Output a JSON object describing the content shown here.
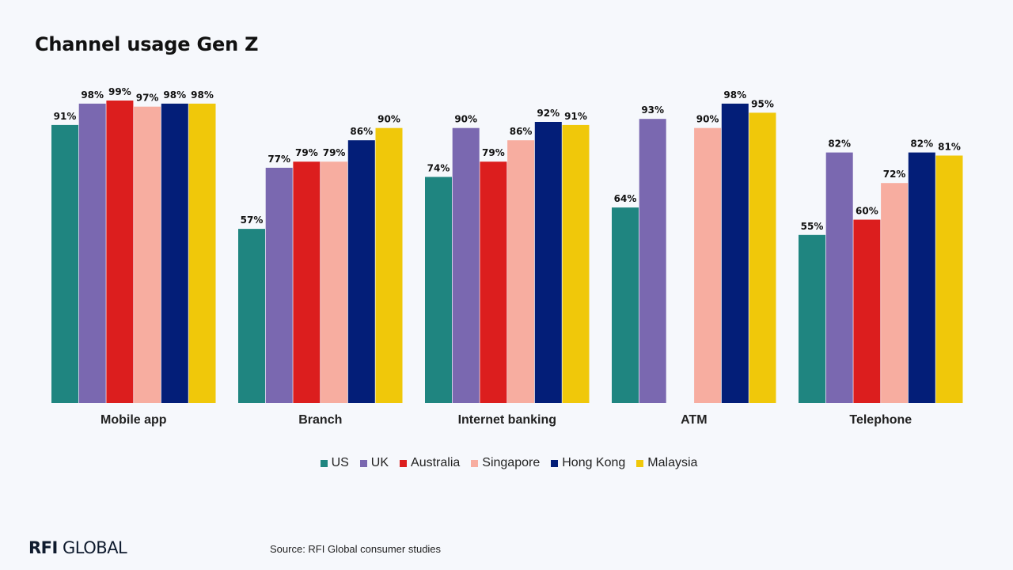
{
  "title": "Channel usage Gen Z",
  "source": "Source: RFI Global consumer studies",
  "brand": {
    "bold": "RFI",
    "rest": "GLOBAL"
  },
  "colors": {
    "US": "#1f8580",
    "UK": "#7a68b0",
    "Australia": "#dc1e1e",
    "Singapore": "#f7ada0",
    "Hong Kong": "#031e78",
    "Malaysia": "#f0c80a"
  },
  "chart_data": {
    "type": "bar",
    "categories": [
      "Mobile app",
      "Branch",
      "Internet banking",
      "ATM",
      "Telephone"
    ],
    "series": [
      {
        "name": "US",
        "values": [
          91,
          57,
          74,
          64,
          55
        ]
      },
      {
        "name": "UK",
        "values": [
          98,
          77,
          90,
          93,
          82
        ]
      },
      {
        "name": "Australia",
        "values": [
          99,
          79,
          79,
          null,
          60
        ]
      },
      {
        "name": "Singapore",
        "values": [
          97,
          79,
          86,
          90,
          72
        ]
      },
      {
        "name": "Hong Kong",
        "values": [
          98,
          86,
          92,
          98,
          82
        ]
      },
      {
        "name": "Malaysia",
        "values": [
          98,
          90,
          91,
          95,
          81
        ]
      }
    ],
    "value_suffix": "%",
    "ylim": [
      0,
      100
    ],
    "grid": false,
    "legend": "bottom"
  }
}
